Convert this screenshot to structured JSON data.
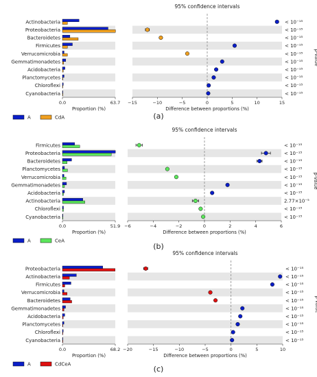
{
  "panels": [
    {
      "caption": "(a)",
      "ci_title": "95% confidence intervals",
      "prop_xlabel": "Proportion (%)",
      "diff_xlabel": "Difference between proportions (%)",
      "pvalue_label": "p-value",
      "prop_ticks": [
        "0.0",
        "63.7"
      ],
      "legend": [
        {
          "name": "A",
          "color": "#0a1ec8"
        },
        {
          "name": "CdA",
          "color": "#f0a020"
        }
      ]
    },
    {
      "caption": "(b)",
      "ci_title": "95% confidence intervals",
      "prop_xlabel": "Proportion (%)",
      "diff_xlabel": "Difference between proportions (%)",
      "pvalue_label": "p-value",
      "prop_ticks": [
        "0.0",
        "51.9"
      ],
      "legend": [
        {
          "name": "A",
          "color": "#0a1ec8"
        },
        {
          "name": "CeA",
          "color": "#5ce65c"
        }
      ]
    },
    {
      "caption": "(c)",
      "ci_title": "95% confidence intervals",
      "prop_xlabel": "Proportion (%)",
      "diff_xlabel": "Difference between proportions (%)",
      "pvalue_label": "p-value",
      "prop_ticks": [
        "0.0",
        "68.2"
      ],
      "legend": [
        {
          "name": "A",
          "color": "#0a1ec8"
        },
        {
          "name": "CdCeA",
          "color": "#e01010"
        }
      ]
    }
  ],
  "chart_data": [
    {
      "type": "bar",
      "categories": [
        "Actinobacteria",
        "Proteobacteria",
        "Bacteroidetes",
        "Firmicutes",
        "Verrucomicrobia",
        "Gemmatimonadetes",
        "Acidobacteria",
        "Planctomycetes",
        "Chloroflexi",
        "Cyanobacteria"
      ],
      "xlim": [
        0,
        63.7
      ],
      "series": [
        {
          "name": "A",
          "color": "#0a1ec8",
          "values": [
            20,
            55,
            9,
            12,
            2,
            4,
            3,
            2,
            1,
            0.5
          ]
        },
        {
          "name": "CdA",
          "color": "#f0a020",
          "values": [
            6,
            64,
            19,
            6,
            6,
            1.5,
            1,
            0.5,
            0.3,
            0.2
          ]
        }
      ],
      "diff_xlim": [
        -15,
        15
      ],
      "diff_ticks": [
        -15,
        -10,
        -5,
        0,
        5,
        10,
        15
      ],
      "differences": [
        14,
        -12,
        -9.3,
        5.5,
        -4,
        3,
        1.8,
        1.3,
        0.3,
        0.2
      ],
      "diff_err": [
        0.3,
        0.4,
        0.3,
        0.2,
        0.2,
        0.1,
        0.1,
        0.1,
        0.1,
        0.1
      ],
      "diff_colors": [
        "#0a1ec8",
        "#f0a020",
        "#f0a020",
        "#0a1ec8",
        "#f0a020",
        "#0a1ec8",
        "#0a1ec8",
        "#0a1ec8",
        "#0a1ec8",
        "#0a1ec8"
      ],
      "pvalues": [
        "< 10⁻¹⁵",
        "< 10⁻¹⁵",
        "< 10⁻¹⁵",
        "< 10⁻¹⁵",
        "< 10⁻¹⁵",
        "< 10⁻¹⁵",
        "< 10⁻¹⁵",
        "< 10⁻¹⁵",
        "< 10⁻¹⁵",
        "< 10⁻¹⁵"
      ]
    },
    {
      "type": "bar",
      "categories": [
        "Firmicutes",
        "Proteobacteria",
        "Bacteroidetes",
        "Planctomycetes",
        "Verrucomicrobia",
        "Gemmatimonadetes",
        "Acidobacteria",
        "Actinobacteria",
        "Chloroflexi",
        "Cyanobacteria"
      ],
      "xlim": [
        0,
        51.9
      ],
      "series": [
        {
          "name": "A",
          "color": "#0a1ec8",
          "values": [
            12,
            52,
            9,
            2,
            1.5,
            4,
            2,
            20,
            1,
            0.5
          ]
        },
        {
          "name": "CeA",
          "color": "#5ce65c",
          "values": [
            17,
            48,
            4.5,
            5,
            3.5,
            2,
            1,
            22,
            1,
            0.5
          ]
        }
      ],
      "diff_xlim": [
        -6,
        6
      ],
      "diff_ticks": [
        -6,
        -4,
        -2,
        0,
        2,
        4,
        6
      ],
      "differences": [
        -5.1,
        4.8,
        4.3,
        -2.9,
        -2.2,
        1.8,
        0.6,
        -0.7,
        -0.3,
        -0.1
      ],
      "diff_err": [
        0.25,
        0.35,
        0.2,
        0.1,
        0.1,
        0.1,
        0.05,
        0.25,
        0.05,
        0.05
      ],
      "diff_colors": [
        "#5ce65c",
        "#0a1ec8",
        "#0a1ec8",
        "#5ce65c",
        "#5ce65c",
        "#0a1ec8",
        "#0a1ec8",
        "#5ce65c",
        "#5ce65c",
        "#5ce65c"
      ],
      "pvalues": [
        "< 10⁻¹⁵",
        "< 10⁻¹⁵",
        "< 10⁻¹⁵",
        "< 10⁻¹⁵",
        "< 10⁻¹⁵",
        "< 10⁻¹⁵",
        "< 10⁻¹⁵",
        "2.77×10⁻⁵",
        "< 10⁻¹⁵",
        "< 10⁻¹⁵"
      ]
    },
    {
      "type": "bar",
      "categories": [
        "Proteobacteria",
        "Actinobacteria",
        "Firmicutes",
        "Verrucomicrobia",
        "Bacteroidetes",
        "Gemmatimonadetes",
        "Acidobacteria",
        "Planctomycetes",
        "Chloroflexi",
        "Cyanobacteria"
      ],
      "xlim": [
        0,
        68.2
      ],
      "series": [
        {
          "name": "A",
          "color": "#0a1ec8",
          "values": [
            52,
            18,
            11,
            2,
            10,
            4,
            3,
            2,
            1,
            0.5
          ]
        },
        {
          "name": "CdCeA",
          "color": "#e01010",
          "values": [
            68,
            9,
            3,
            6,
            12,
            2,
            1,
            0.5,
            0.5,
            0.3
          ]
        }
      ],
      "diff_xlim": [
        -20,
        10
      ],
      "diff_ticks": [
        -20,
        -15,
        -10,
        -5,
        0,
        5,
        10
      ],
      "differences": [
        -16.5,
        9.5,
        8,
        -4,
        -3,
        2.2,
        1.8,
        1.3,
        0.4,
        0.2
      ],
      "diff_err": [
        0.4,
        0.2,
        0.2,
        0.15,
        0.15,
        0.1,
        0.1,
        0.1,
        0.1,
        0.1
      ],
      "diff_colors": [
        "#e01010",
        "#0a1ec8",
        "#0a1ec8",
        "#e01010",
        "#e01010",
        "#0a1ec8",
        "#0a1ec8",
        "#0a1ec8",
        "#0a1ec8",
        "#0a1ec8"
      ],
      "pvalues": [
        "< 10⁻¹⁵",
        "< 10⁻¹⁵",
        "< 10⁻¹⁵",
        "< 10⁻¹⁵",
        "< 10⁻¹⁵",
        "< 10⁻¹⁵",
        "< 10⁻¹⁵",
        "< 10⁻¹⁵",
        "< 10⁻¹⁵",
        "< 10⁻¹⁵"
      ]
    }
  ]
}
